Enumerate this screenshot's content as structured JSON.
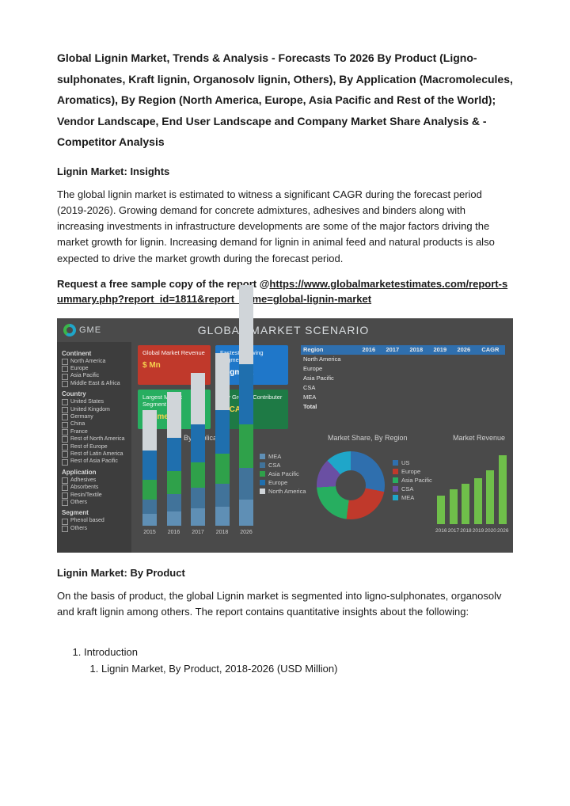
{
  "doc": {
    "title": "Global Lignin Market, Trends & Analysis - Forecasts To 2026 By Product (Ligno-sulphonates, Kraft lignin, Organosolv lignin, Others), By Application (Macromolecules, Aromatics), By Region (North America, Europe, Asia Pacific and Rest of the World); Vendor Landscape, End User Landscape and Company Market Share Analysis & -Competitor Analysis",
    "insights_h": "Lignin Market: Insights",
    "insights_p": "The global lignin market is estimated to witness a significant CAGR during the forecast period (2019-2026). Growing demand for concrete admixtures, adhesives and binders along with increasing investments in infrastructure developments are some of the major factors driving the market growth for lignin. Increasing demand for lignin in animal feed and natural products is also expected to drive the market growth during the forecast period.",
    "req_line": "Request a free sample copy of the report @",
    "req_url": "https://www.globalmarketestimates.com/report-summary.php?report_id=1811&report_name=global-lignin-market",
    "byprod_h": "Lignin Market: By Product",
    "byprod_p": "On the basis of product, the global Lignin market is segmented into ligno-sulphonates, organosolv and kraft lignin among others.  The report contains quantitative insights about the following:",
    "ol1": "Introduction",
    "ol1_1": "Lignin Market, By Product, 2018-2026 (USD Million)"
  },
  "info": {
    "logo": "GME",
    "title": "GLOBAL MARKET SCENARIO",
    "sidebar": {
      "continent_h": "Continent",
      "continents": [
        "North America",
        "Europe",
        "Asia Pacific",
        "Middle East & Africa"
      ],
      "country_h": "Country",
      "countries": [
        "United States",
        "United Kingdom",
        "Germany",
        "China",
        "France",
        "Rest of North America",
        "Rest of Europe",
        "Rest of Latin America",
        "Rest of Asia Pacific"
      ],
      "app_h": "Application",
      "apps": [
        "Adhesives",
        "Absorbents",
        "Resin/Textile",
        "Others"
      ],
      "seg_h": "Segment",
      "segs": [
        "Phenol based",
        "Others"
      ]
    },
    "cards": [
      {
        "cls": "red",
        "lbl": "Global Market Revenue",
        "val": "$ Mn",
        "val_color": "#f6d04d"
      },
      {
        "cls": "blue",
        "lbl": "Fastest Growing Segment",
        "val": "Segment",
        "val_color": "#ffffff"
      },
      {
        "cls": "green",
        "lbl": "Largest Market Segment",
        "val": "Segment",
        "val_color": "#f6d04d"
      },
      {
        "cls": "dgreen",
        "lbl": "Key Growth Contributer",
        "val": "% CAGR",
        "val_color": "#f6d04d"
      }
    ],
    "table": {
      "cols": [
        "Region",
        "2016",
        "2017",
        "2018",
        "2019",
        "2026",
        "CAGR"
      ],
      "rows": [
        [
          "North America",
          "",
          "",
          "",
          "",
          "",
          ""
        ],
        [
          "Europe",
          "",
          "",
          "",
          "",
          "",
          ""
        ],
        [
          "Asia Pacific",
          "",
          "",
          "",
          "",
          "",
          ""
        ],
        [
          "CSA",
          "",
          "",
          "",
          "",
          "",
          ""
        ],
        [
          "MEA",
          "",
          "",
          "",
          "",
          "",
          ""
        ],
        [
          "Total",
          "",
          "",
          "",
          "",
          "",
          ""
        ]
      ]
    },
    "byapp": {
      "title": "By Application",
      "years": [
        "2015",
        "2016",
        "2017",
        "2018",
        "2026"
      ],
      "series": [
        {
          "name": "MEA",
          "color": "#5f8fb5",
          "vals": [
            8,
            10,
            12,
            13,
            18
          ]
        },
        {
          "name": "CSA",
          "color": "#41739a",
          "vals": [
            10,
            12,
            14,
            16,
            22
          ]
        },
        {
          "name": "Asia Pacific",
          "color": "#2fa14a",
          "vals": [
            14,
            16,
            18,
            21,
            30
          ]
        },
        {
          "name": "Europe",
          "color": "#1f6fae",
          "vals": [
            20,
            23,
            26,
            30,
            42
          ]
        },
        {
          "name": "North America",
          "color": "#d0d5d9",
          "vals": [
            28,
            32,
            36,
            40,
            55
          ]
        }
      ],
      "max": 55
    },
    "share": {
      "title": "Market Share, By Region",
      "slices": [
        {
          "name": "US",
          "color": "#2f6fae",
          "pct": 28
        },
        {
          "name": "Europe",
          "color": "#c0392b",
          "pct": 24
        },
        {
          "name": "Asia Pacific",
          "color": "#27ae60",
          "pct": 22
        },
        {
          "name": "CSA",
          "color": "#6a4fa3",
          "pct": 14
        },
        {
          "name": "MEA",
          "color": "#1fa6c9",
          "pct": 12
        }
      ]
    },
    "rev": {
      "title": "Market Revenue",
      "years": [
        "2016",
        "2017",
        "2018",
        "2019",
        "2020",
        "2026"
      ],
      "vals": [
        30,
        36,
        42,
        48,
        56,
        72
      ],
      "max": 80,
      "color": "#6fbf4a"
    },
    "bg": "#4a4a4a"
  }
}
